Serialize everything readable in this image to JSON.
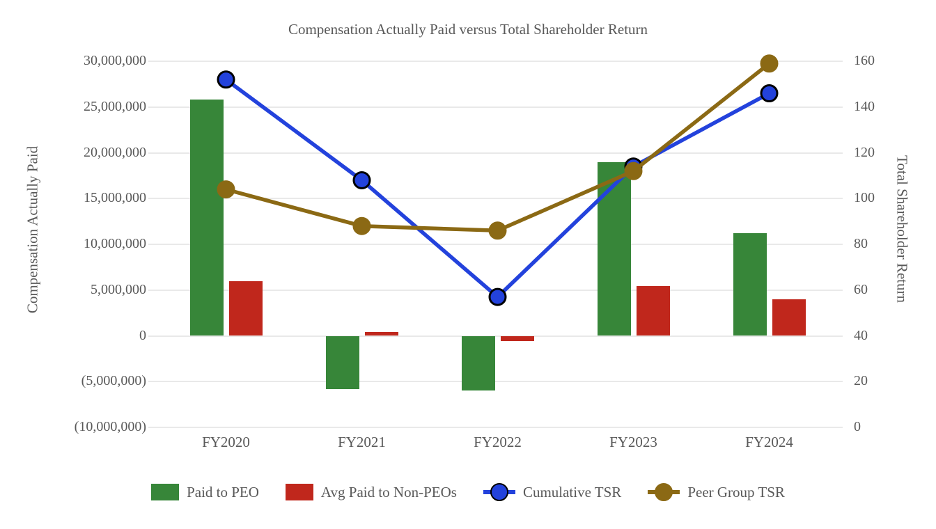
{
  "title": "Compensation Actually Paid versus Total Shareholder Return",
  "chart_data": {
    "type": "combo",
    "grid": true,
    "legend_position": "bottom",
    "categories": [
      "FY2020",
      "FY2021",
      "FY2022",
      "FY2023",
      "FY2024"
    ],
    "series": [
      {
        "name": "Paid to PEO",
        "type": "bar",
        "axis": "left",
        "color": "#378639",
        "values": [
          25800000,
          -5800000,
          -6000000,
          19000000,
          11200000
        ]
      },
      {
        "name": "Avg Paid to Non-PEOs",
        "type": "bar",
        "axis": "left",
        "color": "#C0271C",
        "values": [
          6000000,
          400000,
          -600000,
          5400000,
          4000000
        ]
      },
      {
        "name": "Cumulative TSR",
        "type": "line",
        "axis": "right",
        "color": "#2342DC",
        "marker_outline": "#000000",
        "values": [
          152,
          108,
          57,
          114,
          146
        ]
      },
      {
        "name": "Peer Group TSR",
        "type": "line",
        "axis": "right",
        "color": "#8B6914",
        "marker_outline": "#8B6914",
        "values": [
          104,
          88,
          86,
          112,
          159
        ]
      }
    ],
    "left_axis": {
      "label": "Compensation Actually Paid",
      "min": -10000000,
      "max": 30000000,
      "step": 5000000,
      "tick_labels": [
        "30,000,000",
        "25,000,000",
        "20,000,000",
        "15,000,000",
        "10,000,000",
        "5,000,000",
        "0",
        "(5,000,000)",
        "(10,000,000)"
      ]
    },
    "right_axis": {
      "label": "Total Shareholder Return",
      "min": 0,
      "max": 160,
      "step": 20,
      "tick_labels": [
        "160",
        "140",
        "120",
        "100",
        "80",
        "60",
        "40",
        "20",
        "0"
      ]
    },
    "legend": [
      "Paid to PEO",
      "Avg Paid to Non-PEOs",
      "Cumulative TSR",
      "Peer Group TSR"
    ],
    "colors": {
      "grid": "#e9e9e9",
      "text": "#595959",
      "background": "#ffffff"
    }
  }
}
